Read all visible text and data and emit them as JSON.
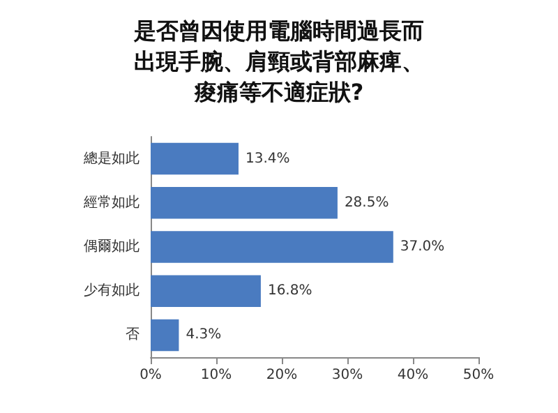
{
  "chart_data": {
    "type": "bar",
    "orientation": "horizontal",
    "title": "是否曾因使用電腦時間過長而出現手腕、肩頸或背部麻痺、痠痛等不適症狀?",
    "categories": [
      "總是如此",
      "經常如此",
      "偶爾如此",
      "少有如此",
      "否"
    ],
    "values": [
      13.4,
      28.5,
      37.0,
      16.8,
      4.3
    ],
    "value_labels": [
      "13.4%",
      "28.5%",
      "37.0%",
      "16.8%",
      "4.3%"
    ],
    "color": "#4a7bc0",
    "xlim": [
      0,
      50
    ],
    "xticks": [
      {
        "value": 0,
        "label": "0%"
      },
      {
        "value": 10,
        "label": "10%"
      },
      {
        "value": 20,
        "label": "20%"
      },
      {
        "value": 30,
        "label": "30%"
      },
      {
        "value": 40,
        "label": "40%"
      },
      {
        "value": 50,
        "label": "50%"
      }
    ],
    "grid": false
  }
}
